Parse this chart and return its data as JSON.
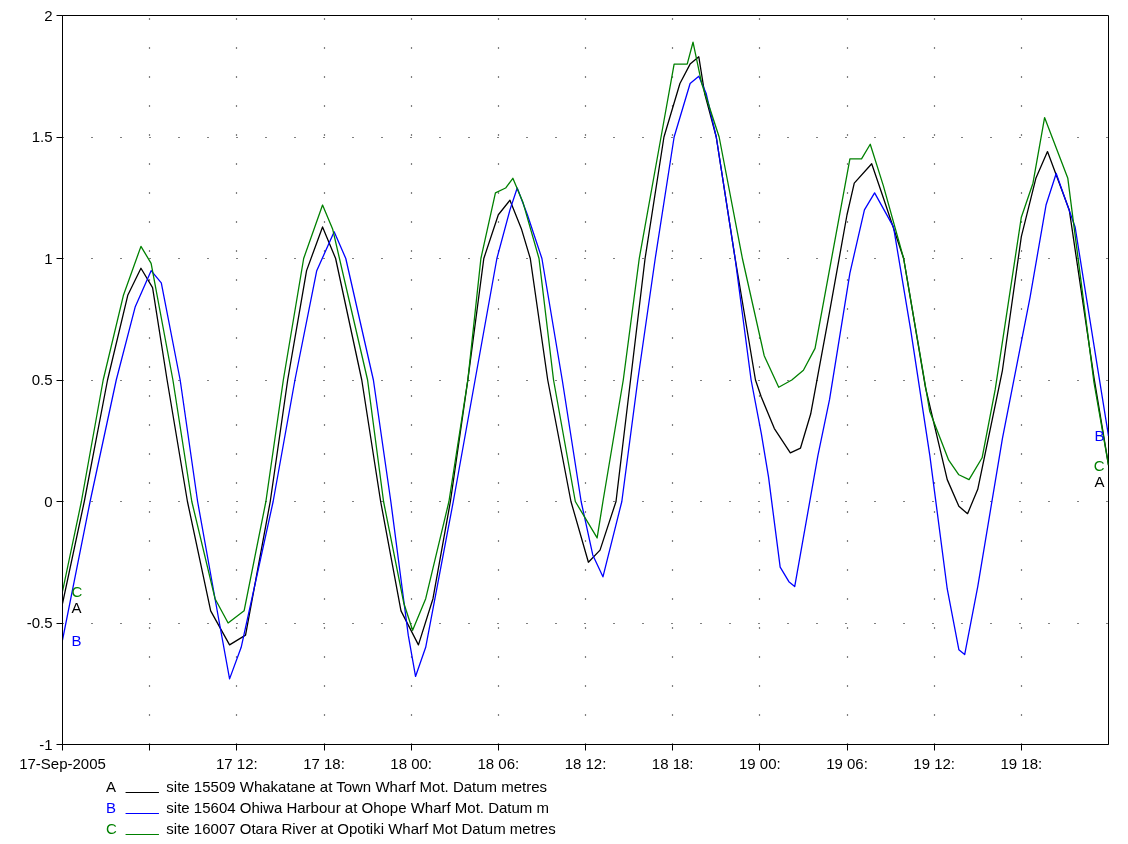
{
  "chart_data": {
    "type": "line",
    "xlim": [
      "2005-09-17T00:00",
      "2005-09-20T00:00"
    ],
    "ylim": [
      -1,
      2
    ],
    "xticks": [
      {
        "value": "2005-09-17T00:00",
        "label": "17-Sep-2005"
      },
      {
        "value": "2005-09-17T06:00",
        "label": null
      },
      {
        "value": "2005-09-17T12:00",
        "label": "17 12:"
      },
      {
        "value": "2005-09-17T18:00",
        "label": "17 18:"
      },
      {
        "value": "2005-09-18T00:00",
        "label": "18 00:"
      },
      {
        "value": "2005-09-18T06:00",
        "label": "18 06:"
      },
      {
        "value": "2005-09-18T12:00",
        "label": "18 12:"
      },
      {
        "value": "2005-09-18T18:00",
        "label": "18 18:"
      },
      {
        "value": "2005-09-19T00:00",
        "label": "19 00:"
      },
      {
        "value": "2005-09-19T06:00",
        "label": "19 06:"
      },
      {
        "value": "2005-09-19T12:00",
        "label": "19 12:"
      },
      {
        "value": "2005-09-19T18:00",
        "label": "19 18:"
      }
    ],
    "yticks": [
      -1,
      -0.5,
      0,
      0.5,
      1,
      1.5,
      2
    ],
    "grid": true,
    "legend": "bottom",
    "series": [
      {
        "name": "site 15509 Whakatane at Town Wharf   Mot. Datum metres",
        "color": "#000000",
        "x": [
          "2005-09-17T00:00",
          "2005-09-17T01:30",
          "2005-09-17T03:06",
          "2005-09-17T04:30",
          "2005-09-17T05:24",
          "2005-09-17T06:12",
          "2005-09-17T07:12",
          "2005-09-17T08:36",
          "2005-09-17T10:12",
          "2005-09-17T11:30",
          "2005-09-17T12:36",
          "2005-09-17T14:18",
          "2005-09-17T15:30",
          "2005-09-17T16:48",
          "2005-09-17T17:54",
          "2005-09-17T18:48",
          "2005-09-17T20:36",
          "2005-09-17T21:54",
          "2005-09-17T23:18",
          "2005-09-18T00:30",
          "2005-09-18T01:30",
          "2005-09-18T02:42",
          "2005-09-18T03:54",
          "2005-09-18T05:00",
          "2005-09-18T06:00",
          "2005-09-18T06:48",
          "2005-09-18T07:36",
          "2005-09-18T08:12",
          "2005-09-18T09:24",
          "2005-09-18T11:00",
          "2005-09-18T12:12",
          "2005-09-18T13:00",
          "2005-09-18T14:06",
          "2005-09-18T15:06",
          "2005-09-18T16:06",
          "2005-09-18T17:24",
          "2005-09-18T18:30",
          "2005-09-18T19:12",
          "2005-09-18T19:48",
          "2005-09-18T20:12",
          "2005-09-18T21:00",
          "2005-09-18T22:18",
          "2005-09-18T23:42",
          "2005-09-19T00:06",
          "2005-09-19T01:00",
          "2005-09-19T02:06",
          "2005-09-19T02:48",
          "2005-09-19T03:30",
          "2005-09-19T04:48",
          "2005-09-19T06:00",
          "2005-09-19T06:30",
          "2005-09-19T07:42",
          "2005-09-19T08:30",
          "2005-09-19T09:54",
          "2005-09-19T11:24",
          "2005-09-19T12:54",
          "2005-09-19T13:42",
          "2005-09-19T14:18",
          "2005-09-19T15:00",
          "2005-09-19T16:42",
          "2005-09-19T18:00",
          "2005-09-19T19:00",
          "2005-09-19T19:48",
          "2005-09-19T21:18",
          "2005-09-19T23:00",
          "2005-09-20T00:00"
        ],
        "values": [
          -0.42,
          0,
          0.5,
          0.85,
          0.96,
          0.88,
          0.5,
          0,
          -0.45,
          -0.59,
          -0.55,
          0,
          0.5,
          0.95,
          1.13,
          1.0,
          0.5,
          0,
          -0.45,
          -0.59,
          -0.4,
          0,
          0.5,
          1.0,
          1.18,
          1.24,
          1.12,
          1.0,
          0.5,
          0,
          -0.25,
          -0.2,
          0,
          0.5,
          1.0,
          1.5,
          1.72,
          1.8,
          1.83,
          1.68,
          1.5,
          1.0,
          0.5,
          0.43,
          0.3,
          0.2,
          0.22,
          0.36,
          0.78,
          1.18,
          1.31,
          1.39,
          1.25,
          1.0,
          0.47,
          0.09,
          -0.02,
          -0.05,
          0.05,
          0.54,
          1.09,
          1.33,
          1.44,
          1.2,
          0.51,
          0.15
        ]
      },
      {
        "name": "site 15604 Ohiwa Harbour at Ohope Wharf   Mot. Datum m",
        "color": "#0000ff",
        "x": [
          "2005-09-17T00:00",
          "2005-09-17T01:54",
          "2005-09-17T03:42",
          "2005-09-17T05:00",
          "2005-09-17T06:06",
          "2005-09-17T06:48",
          "2005-09-17T08:06",
          "2005-09-17T09:18",
          "2005-09-17T10:48",
          "2005-09-17T11:30",
          "2005-09-17T12:18",
          "2005-09-17T14:30",
          "2005-09-17T16:00",
          "2005-09-17T17:30",
          "2005-09-17T18:42",
          "2005-09-17T19:30",
          "2005-09-17T21:24",
          "2005-09-17T22:36",
          "2005-09-17T23:48",
          "2005-09-18T00:18",
          "2005-09-18T01:00",
          "2005-09-18T02:54",
          "2005-09-18T04:24",
          "2005-09-18T05:54",
          "2005-09-18T06:48",
          "2005-09-18T07:18",
          "2005-09-18T08:00",
          "2005-09-18T09:00",
          "2005-09-18T10:24",
          "2005-09-18T11:42",
          "2005-09-18T12:30",
          "2005-09-18T13:12",
          "2005-09-18T14:30",
          "2005-09-18T15:36",
          "2005-09-18T16:48",
          "2005-09-18T18:06",
          "2005-09-18T19:12",
          "2005-09-18T19:48",
          "2005-09-18T20:18",
          "2005-09-18T21:00",
          "2005-09-18T22:18",
          "2005-09-18T23:24",
          "2005-09-19T00:06",
          "2005-09-19T00:36",
          "2005-09-19T01:24",
          "2005-09-19T02:00",
          "2005-09-19T02:24",
          "2005-09-19T04:00",
          "2005-09-19T04:48",
          "2005-09-19T06:12",
          "2005-09-19T07:12",
          "2005-09-19T07:54",
          "2005-09-19T09:12",
          "2005-09-19T10:24",
          "2005-09-19T11:42",
          "2005-09-19T12:54",
          "2005-09-19T13:42",
          "2005-09-19T14:06",
          "2005-09-19T15:00",
          "2005-09-19T16:42",
          "2005-09-19T18:36",
          "2005-09-19T19:42",
          "2005-09-19T20:24",
          "2005-09-19T21:42",
          "2005-09-19T23:18",
          "2005-09-20T00:00"
        ],
        "values": [
          -0.57,
          0,
          0.5,
          0.8,
          0.95,
          0.9,
          0.5,
          0,
          -0.5,
          -0.73,
          -0.6,
          0,
          0.5,
          0.95,
          1.11,
          1.0,
          0.5,
          0,
          -0.55,
          -0.72,
          -0.6,
          0,
          0.5,
          1.0,
          1.2,
          1.29,
          1.18,
          1.0,
          0.5,
          0,
          -0.22,
          -0.31,
          0,
          0.5,
          1.0,
          1.5,
          1.72,
          1.75,
          1.68,
          1.5,
          1.0,
          0.5,
          0.28,
          0.1,
          -0.27,
          -0.33,
          -0.35,
          0.19,
          0.42,
          0.94,
          1.2,
          1.27,
          1.13,
          0.7,
          0.19,
          -0.36,
          -0.61,
          -0.63,
          -0.35,
          0.26,
          0.84,
          1.22,
          1.35,
          1.13,
          0.53,
          0.27
        ]
      },
      {
        "name": "site 16007 Otara River at Opotiki Wharf   Mot Datum metres",
        "color": "#008000",
        "x": [
          "2005-09-17T00:00",
          "2005-09-17T01:18",
          "2005-09-17T02:48",
          "2005-09-17T04:12",
          "2005-09-17T05:24",
          "2005-09-17T06:06",
          "2005-09-17T07:36",
          "2005-09-17T08:54",
          "2005-09-17T10:30",
          "2005-09-17T11:24",
          "2005-09-17T12:30",
          "2005-09-17T14:00",
          "2005-09-17T15:12",
          "2005-09-17T16:36",
          "2005-09-17T17:54",
          "2005-09-17T18:36",
          "2005-09-17T21:00",
          "2005-09-17T22:06",
          "2005-09-17T23:30",
          "2005-09-18T00:06",
          "2005-09-18T01:00",
          "2005-09-18T02:36",
          "2005-09-18T03:54",
          "2005-09-18T04:48",
          "2005-09-18T05:48",
          "2005-09-18T06:30",
          "2005-09-18T07:00",
          "2005-09-18T07:42",
          "2005-09-18T08:48",
          "2005-09-18T09:48",
          "2005-09-18T11:18",
          "2005-09-18T12:48",
          "2005-09-18T13:12",
          "2005-09-18T14:36",
          "2005-09-18T15:42",
          "2005-09-18T17:12",
          "2005-09-18T18:06",
          "2005-09-18T19:00",
          "2005-09-18T19:24",
          "2005-09-18T20:00",
          "2005-09-18T21:12",
          "2005-09-18T22:48",
          "2005-09-19T00:18",
          "2005-09-19T01:18",
          "2005-09-19T02:12",
          "2005-09-19T03:00",
          "2005-09-19T03:48",
          "2005-09-19T05:00",
          "2005-09-19T06:12",
          "2005-09-19T07:00",
          "2005-09-19T07:36",
          "2005-09-19T08:30",
          "2005-09-19T09:54",
          "2005-09-19T11:42",
          "2005-09-19T13:00",
          "2005-09-19T13:42",
          "2005-09-19T14:24",
          "2005-09-19T15:18",
          "2005-09-19T16:12",
          "2005-09-19T18:00",
          "2005-09-19T18:48",
          "2005-09-19T19:36",
          "2005-09-19T21:12",
          "2005-09-19T23:00",
          "2005-09-20T00:00"
        ],
        "values": [
          -0.37,
          0,
          0.5,
          0.85,
          1.05,
          0.98,
          0.5,
          0,
          -0.4,
          -0.5,
          -0.45,
          0,
          0.5,
          1.0,
          1.22,
          1.12,
          0.5,
          0,
          -0.42,
          -0.53,
          -0.4,
          0,
          0.5,
          1.0,
          1.27,
          1.29,
          1.33,
          1.23,
          1.0,
          0.5,
          0,
          -0.15,
          0,
          0.5,
          1.0,
          1.5,
          1.8,
          1.8,
          1.89,
          1.72,
          1.5,
          1.0,
          0.6,
          0.47,
          0.5,
          0.54,
          0.63,
          1.02,
          1.41,
          1.41,
          1.47,
          1.3,
          1.0,
          0.37,
          0.17,
          0.11,
          0.09,
          0.18,
          0.46,
          1.17,
          1.31,
          1.58,
          1.33,
          0.49,
          0.15
        ]
      }
    ],
    "annotations": [
      "A",
      "B",
      "C"
    ]
  }
}
